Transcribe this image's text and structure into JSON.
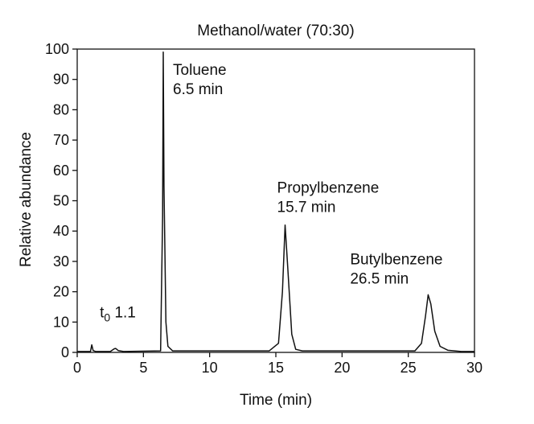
{
  "chart_data": {
    "type": "line",
    "title": "Methanol/water (70:30)",
    "xlabel": "Time (min)",
    "ylabel": "Relative abundance",
    "xlim": [
      0,
      30
    ],
    "ylim": [
      0,
      100
    ],
    "xticks": [
      0,
      5,
      10,
      15,
      20,
      25,
      30
    ],
    "yticks": [
      0,
      10,
      20,
      30,
      40,
      50,
      60,
      70,
      80,
      90,
      100
    ],
    "grid": false,
    "series": [
      {
        "x": [
          0,
          1.0,
          1.1,
          1.2,
          1.4,
          2.5,
          2.8,
          2.9,
          3.1,
          3.5,
          6.3,
          6.45,
          6.5,
          6.55,
          6.7,
          6.85,
          7.2,
          14.5,
          15.2,
          15.5,
          15.7,
          15.9,
          16.2,
          16.5,
          17.0,
          25.5,
          26.0,
          26.3,
          26.5,
          26.7,
          27.0,
          27.4,
          28.0,
          29.0,
          30
        ],
        "y": [
          0.3,
          0.3,
          2.5,
          0.6,
          0.3,
          0.3,
          1.2,
          1.3,
          0.6,
          0.3,
          0.5,
          45,
          99,
          55,
          10,
          2,
          0.5,
          0.5,
          3,
          20,
          42,
          28,
          6,
          1,
          0.5,
          0.5,
          3,
          12,
          19,
          16,
          7,
          2,
          0.7,
          0.3,
          0.3
        ]
      }
    ],
    "annotations": [
      {
        "line1": "t",
        "sub": "0",
        "line2": " 1.1",
        "x": 1.1,
        "y": 2.5
      },
      {
        "line1": "Toluene",
        "line2": "6.5 min",
        "x": 6.5,
        "y": 99
      },
      {
        "line1": "Propylbenzene",
        "line2": "15.7 min",
        "x": 15.7,
        "y": 42
      },
      {
        "line1": "Butylbenzene",
        "line2": "26.5 min",
        "x": 26.5,
        "y": 19
      }
    ]
  }
}
